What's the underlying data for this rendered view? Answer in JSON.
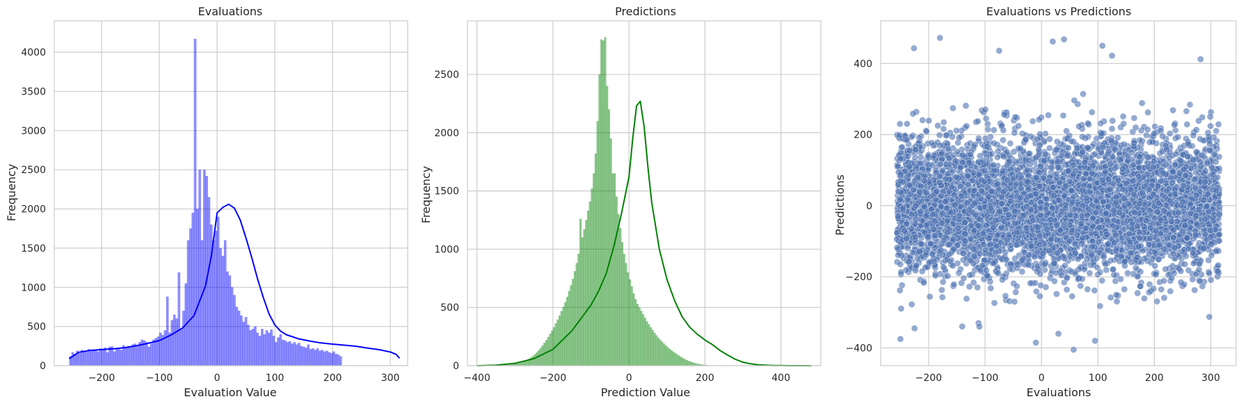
{
  "colors": {
    "grid": "#cccccc",
    "evaluations_hist": "#0000ff",
    "predictions_hist": "#008000",
    "scatter": "#4c72b0"
  },
  "chart_data": [
    {
      "type": "bar",
      "title": "Evaluations",
      "xlabel": "Evaluation Value",
      "ylabel": "Frequency",
      "xlim": [
        -282,
        330
      ],
      "ylim": [
        0,
        4400
      ],
      "xticks": [
        -200,
        -100,
        0,
        100,
        200,
        300
      ],
      "yticks": [
        0,
        500,
        1000,
        1500,
        2000,
        2500,
        3000,
        3500,
        4000
      ],
      "grid": true,
      "bin_start": -256,
      "bin_width": 4,
      "values": [
        120,
        170,
        150,
        190,
        160,
        200,
        180,
        175,
        210,
        190,
        205,
        195,
        180,
        220,
        200,
        230,
        170,
        240,
        245,
        180,
        210,
        230,
        200,
        260,
        220,
        250,
        240,
        270,
        280,
        250,
        300,
        330,
        320,
        300,
        240,
        280,
        330,
        350,
        370,
        420,
        390,
        450,
        880,
        420,
        580,
        650,
        600,
        1190,
        460,
        700,
        1050,
        1600,
        1750,
        1950,
        4170,
        2000,
        2500,
        1600,
        2500,
        2420,
        2150,
        1800,
        1600,
        1720,
        1900,
        1500,
        1400,
        1600,
        1200,
        1150,
        1000,
        900,
        750,
        700,
        640,
        560,
        620,
        520,
        450,
        470,
        500,
        420,
        380,
        470,
        400,
        450,
        420,
        460,
        380,
        300,
        360,
        400,
        330,
        320,
        300,
        310,
        280,
        300,
        270,
        290,
        250,
        240,
        230,
        270,
        210,
        220,
        200,
        220,
        190,
        200,
        180,
        190,
        170,
        160,
        180,
        150,
        140,
        120
      ],
      "kde": {
        "x": [
          -256,
          -240,
          -220,
          -200,
          -180,
          -160,
          -140,
          -120,
          -100,
          -80,
          -60,
          -40,
          -20,
          -10,
          0,
          10,
          20,
          30,
          40,
          50,
          60,
          70,
          80,
          90,
          100,
          110,
          120,
          140,
          160,
          180,
          200,
          220,
          240,
          260,
          280,
          300,
          310,
          316
        ],
        "y": [
          90,
          170,
          195,
          205,
          215,
          230,
          255,
          285,
          320,
          390,
          480,
          640,
          1020,
          1400,
          1950,
          2020,
          2060,
          2010,
          1860,
          1630,
          1380,
          1110,
          870,
          660,
          520,
          440,
          395,
          345,
          315,
          290,
          275,
          262,
          248,
          225,
          205,
          175,
          145,
          95
        ]
      }
    },
    {
      "type": "bar",
      "title": "Predictions",
      "xlabel": "Prediction Value",
      "ylabel": "Frequency",
      "xlim": [
        -425,
        505
      ],
      "ylim": [
        0,
        2960
      ],
      "xticks": [
        -400,
        -200,
        0,
        200,
        400
      ],
      "yticks": [
        0,
        500,
        1000,
        1500,
        2000,
        2500
      ],
      "grid": true,
      "bin_start": -400,
      "bin_width": 5,
      "values": [
        0,
        0,
        0,
        0,
        0,
        0,
        0,
        0,
        0,
        1,
        1,
        2,
        2,
        3,
        4,
        5,
        6,
        8,
        10,
        12,
        15,
        18,
        22,
        27,
        33,
        40,
        48,
        58,
        70,
        83,
        97,
        113,
        131,
        151,
        172,
        195,
        219,
        245,
        272,
        300,
        330,
        362,
        395,
        430,
        468,
        505,
        545,
        590,
        640,
        690,
        745,
        810,
        880,
        960,
        1260,
        1100,
        1170,
        1250,
        1330,
        1410,
        1520,
        1650,
        1820,
        2100,
        2500,
        2800,
        2790,
        2820,
        2400,
        2200,
        1950,
        1650,
        1650,
        1450,
        1300,
        1180,
        1060,
        960,
        880,
        800,
        740,
        680,
        620,
        570,
        530,
        500,
        470,
        440,
        410,
        380,
        355,
        330,
        305,
        282,
        260,
        240,
        222,
        205,
        188,
        172,
        157,
        143,
        130,
        118,
        106,
        95,
        84,
        74,
        64,
        55,
        47,
        40,
        34,
        28,
        23,
        19,
        15,
        12,
        9,
        7,
        5,
        4,
        3,
        2,
        1,
        1,
        0,
        0,
        0,
        0,
        0,
        0,
        0,
        0,
        0,
        0,
        0,
        0,
        0,
        0,
        0,
        0,
        0,
        0,
        0,
        0,
        0,
        0,
        0,
        0,
        0,
        0,
        0,
        0,
        0,
        0,
        0,
        0,
        0,
        0,
        0,
        0,
        0,
        0,
        0,
        0,
        0,
        0,
        0,
        0,
        0,
        0,
        0,
        0,
        0,
        0,
        0,
        0,
        0,
        0,
        0,
        0,
        0,
        0,
        0
      ],
      "kde": {
        "x": [
          -400,
          -350,
          -300,
          -250,
          -200,
          -150,
          -100,
          -80,
          -60,
          -40,
          -20,
          0,
          10,
          20,
          30,
          40,
          50,
          60,
          80,
          100,
          120,
          140,
          160,
          180,
          200,
          220,
          240,
          260,
          280,
          300,
          320,
          340,
          360,
          380,
          400,
          420,
          440,
          460,
          480
        ],
        "y": [
          0,
          5,
          20,
          60,
          140,
          300,
          520,
          640,
          790,
          1020,
          1300,
          1620,
          1950,
          2230,
          2270,
          2050,
          1700,
          1400,
          1000,
          740,
          560,
          420,
          330,
          270,
          220,
          180,
          130,
          90,
          55,
          30,
          16,
          8,
          4,
          2,
          1,
          0,
          0,
          0,
          0
        ]
      }
    },
    {
      "type": "scatter",
      "title": "Evaluations vs Predictions",
      "xlabel": "Evaluations",
      "ylabel": "Predictions",
      "xlim": [
        -285,
        345
      ],
      "ylim": [
        -450,
        520
      ],
      "xticks": [
        -200,
        -100,
        0,
        100,
        200,
        300
      ],
      "yticks": [
        -400,
        -200,
        0,
        200,
        400
      ],
      "grid": true,
      "x_range": [
        -256,
        316
      ],
      "y_spread": {
        "core_sd": 95,
        "min": -405,
        "max": 475
      },
      "n_points": 6000,
      "outliers": [
        {
          "x": -180,
          "y": 472
        },
        {
          "x": 20,
          "y": 462
        },
        {
          "x": 40,
          "y": 468
        },
        {
          "x": 108,
          "y": 450
        },
        {
          "x": -226,
          "y": 443
        },
        {
          "x": -75,
          "y": 436
        },
        {
          "x": 125,
          "y": 422
        },
        {
          "x": 282,
          "y": 412
        },
        {
          "x": -250,
          "y": -375
        },
        {
          "x": 57,
          "y": -405
        },
        {
          "x": -10,
          "y": -385
        },
        {
          "x": 95,
          "y": -380
        },
        {
          "x": -225,
          "y": -345
        },
        {
          "x": -110,
          "y": -340
        },
        {
          "x": 30,
          "y": -360
        }
      ]
    }
  ]
}
